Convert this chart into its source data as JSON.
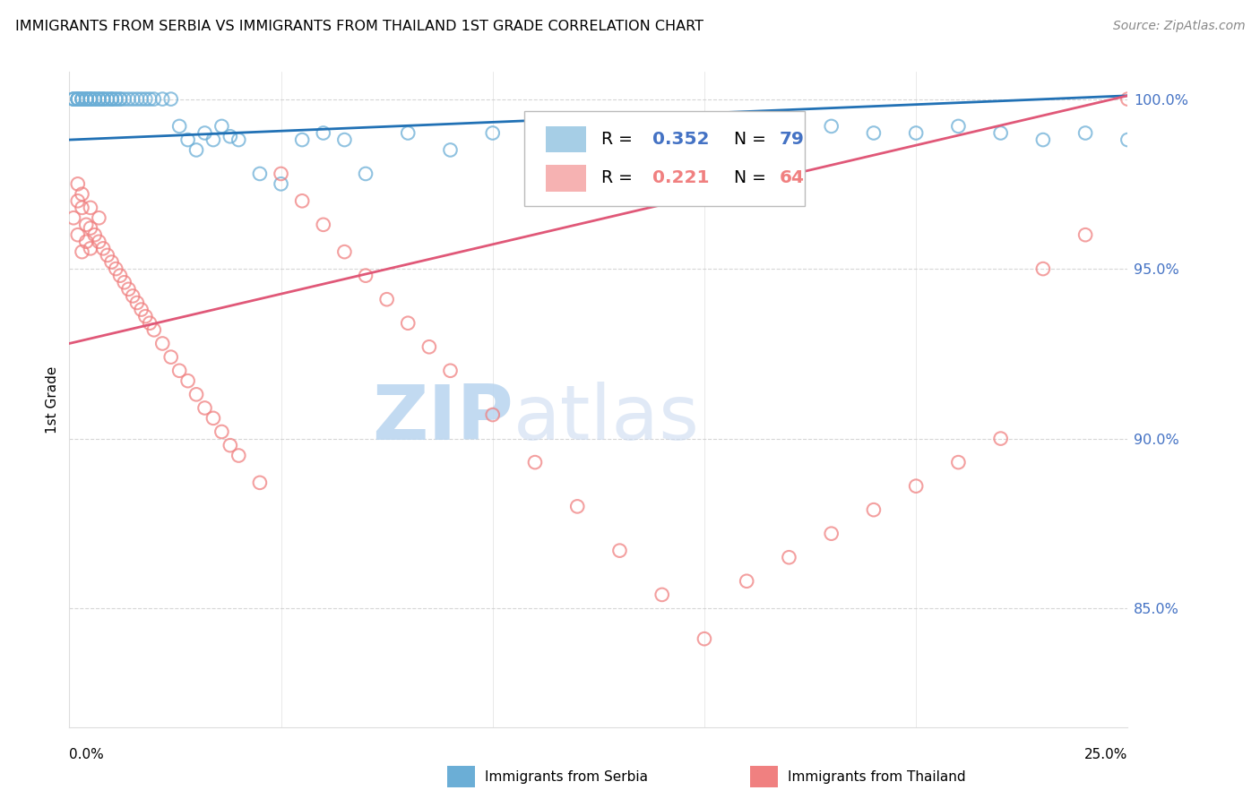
{
  "title": "IMMIGRANTS FROM SERBIA VS IMMIGRANTS FROM THAILAND 1ST GRADE CORRELATION CHART",
  "source": "Source: ZipAtlas.com",
  "ylabel": "1st Grade",
  "x_min": 0.0,
  "x_max": 0.25,
  "y_min": 0.815,
  "y_max": 1.008,
  "serbia_R": 0.352,
  "serbia_N": 79,
  "thailand_R": 0.221,
  "thailand_N": 64,
  "serbia_color": "#6baed6",
  "thailand_color": "#f08080",
  "serbia_line_color": "#2171b5",
  "thailand_line_color": "#e05878",
  "serbia_line_x0": 0.0,
  "serbia_line_y0": 0.988,
  "serbia_line_x1": 0.25,
  "serbia_line_y1": 1.001,
  "thailand_line_x0": 0.0,
  "thailand_line_y0": 0.928,
  "thailand_line_x1": 0.25,
  "thailand_line_y1": 1.001,
  "yticks": [
    0.85,
    0.9,
    0.95,
    1.0
  ],
  "ytick_labels": [
    "85.0%",
    "90.0%",
    "95.0%",
    "100.0%"
  ],
  "grid_color": "#cccccc",
  "background_color": "#ffffff",
  "tick_color": "#4472c4",
  "serbia_scatter_x": [
    0.001,
    0.001,
    0.001,
    0.002,
    0.002,
    0.002,
    0.002,
    0.002,
    0.003,
    0.003,
    0.003,
    0.003,
    0.004,
    0.004,
    0.004,
    0.004,
    0.005,
    0.005,
    0.005,
    0.005,
    0.006,
    0.006,
    0.006,
    0.007,
    0.007,
    0.007,
    0.008,
    0.008,
    0.008,
    0.009,
    0.009,
    0.01,
    0.01,
    0.01,
    0.011,
    0.011,
    0.012,
    0.012,
    0.013,
    0.014,
    0.015,
    0.016,
    0.017,
    0.018,
    0.019,
    0.02,
    0.022,
    0.024,
    0.026,
    0.028,
    0.03,
    0.032,
    0.034,
    0.036,
    0.038,
    0.04,
    0.045,
    0.05,
    0.055,
    0.06,
    0.065,
    0.07,
    0.08,
    0.09,
    0.1,
    0.11,
    0.12,
    0.13,
    0.15,
    0.16,
    0.17,
    0.18,
    0.19,
    0.2,
    0.21,
    0.22,
    0.23,
    0.24,
    0.25
  ],
  "serbia_scatter_y": [
    1.0,
    1.0,
    1.0,
    1.0,
    1.0,
    1.0,
    1.0,
    1.0,
    1.0,
    1.0,
    1.0,
    1.0,
    1.0,
    1.0,
    1.0,
    1.0,
    1.0,
    1.0,
    1.0,
    1.0,
    1.0,
    1.0,
    1.0,
    1.0,
    1.0,
    1.0,
    1.0,
    1.0,
    1.0,
    1.0,
    1.0,
    1.0,
    1.0,
    1.0,
    1.0,
    1.0,
    1.0,
    1.0,
    1.0,
    1.0,
    1.0,
    1.0,
    1.0,
    1.0,
    1.0,
    1.0,
    1.0,
    1.0,
    0.992,
    0.988,
    0.985,
    0.99,
    0.988,
    0.992,
    0.989,
    0.988,
    0.978,
    0.975,
    0.988,
    0.99,
    0.988,
    0.978,
    0.99,
    0.985,
    0.99,
    0.99,
    0.988,
    0.99,
    0.992,
    0.99,
    0.985,
    0.992,
    0.99,
    0.99,
    0.992,
    0.99,
    0.988,
    0.99,
    0.988
  ],
  "thailand_scatter_x": [
    0.001,
    0.002,
    0.002,
    0.003,
    0.003,
    0.004,
    0.004,
    0.005,
    0.005,
    0.006,
    0.007,
    0.008,
    0.009,
    0.01,
    0.011,
    0.012,
    0.013,
    0.014,
    0.015,
    0.016,
    0.017,
    0.018,
    0.019,
    0.02,
    0.022,
    0.024,
    0.026,
    0.028,
    0.03,
    0.032,
    0.034,
    0.036,
    0.038,
    0.04,
    0.045,
    0.05,
    0.055,
    0.06,
    0.065,
    0.07,
    0.075,
    0.08,
    0.085,
    0.09,
    0.1,
    0.11,
    0.12,
    0.13,
    0.14,
    0.15,
    0.16,
    0.17,
    0.18,
    0.19,
    0.2,
    0.21,
    0.22,
    0.23,
    0.24,
    0.25,
    0.002,
    0.003,
    0.005,
    0.007
  ],
  "thailand_scatter_y": [
    0.965,
    0.97,
    0.96,
    0.968,
    0.955,
    0.963,
    0.958,
    0.962,
    0.956,
    0.96,
    0.958,
    0.956,
    0.954,
    0.952,
    0.95,
    0.948,
    0.946,
    0.944,
    0.942,
    0.94,
    0.938,
    0.936,
    0.934,
    0.932,
    0.928,
    0.924,
    0.92,
    0.917,
    0.913,
    0.909,
    0.906,
    0.902,
    0.898,
    0.895,
    0.887,
    0.978,
    0.97,
    0.963,
    0.955,
    0.948,
    0.941,
    0.934,
    0.927,
    0.92,
    0.907,
    0.893,
    0.88,
    0.867,
    0.854,
    0.841,
    0.858,
    0.865,
    0.872,
    0.879,
    0.886,
    0.893,
    0.9,
    0.95,
    0.96,
    1.0,
    0.975,
    0.972,
    0.968,
    0.965
  ]
}
